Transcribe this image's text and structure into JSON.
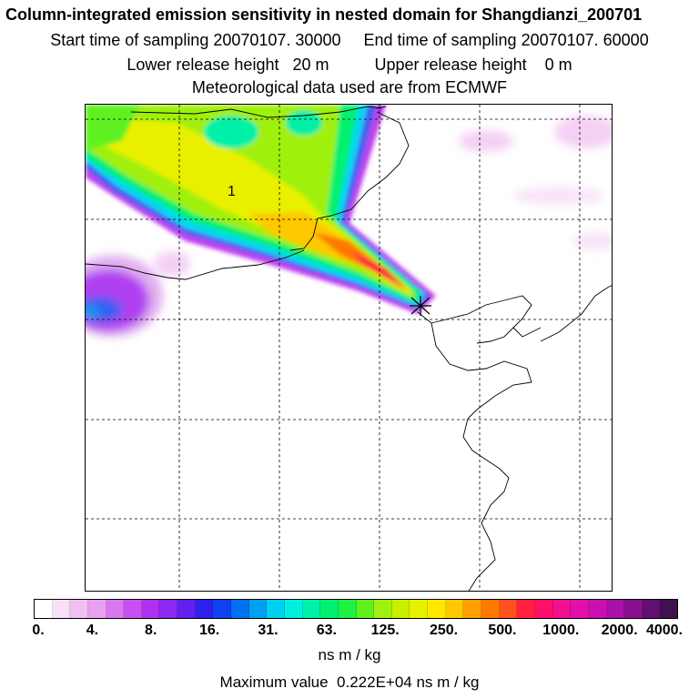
{
  "header": {
    "title": "Column-integrated emission sensitivity in nested domain for Shangdianzi_200701",
    "sampling": "Start time of sampling 20070107. 30000     End time of sampling 20070107. 60000",
    "release": "Lower release height   20 m          Upper release height    0 m",
    "meteo": "Meteorological data used are from ECMWF"
  },
  "map": {
    "contour_label": "1",
    "receptor_marker": "Shangdianzi"
  },
  "colorbar": {
    "tick_labels": [
      "0.",
      "4.",
      "8.",
      "16.",
      "31.",
      "63.",
      "125.",
      "250.",
      "500.",
      "1000.",
      "2000.",
      "4000."
    ],
    "colors": [
      "#ffffff",
      "#f8e0f8",
      "#f0c0f0",
      "#e8a0f0",
      "#d878f0",
      "#c850f0",
      "#b030f0",
      "#8c28f0",
      "#6020f0",
      "#3020f0",
      "#1040f0",
      "#0070f0",
      "#00a0f0",
      "#00d0f0",
      "#00f0e0",
      "#00f0a8",
      "#00f070",
      "#20f040",
      "#60f020",
      "#a0f010",
      "#c8f000",
      "#e8f000",
      "#ffe800",
      "#ffc800",
      "#ffa000",
      "#ff7800",
      "#ff5020",
      "#ff2040",
      "#ff1068",
      "#f01090",
      "#e010a8",
      "#c810b0",
      "#a810a8",
      "#881090",
      "#601070",
      "#401050"
    ],
    "units": "ns m / kg"
  },
  "footer": {
    "max_value": "Maximum value  0.222E+04 ns m / kg"
  }
}
